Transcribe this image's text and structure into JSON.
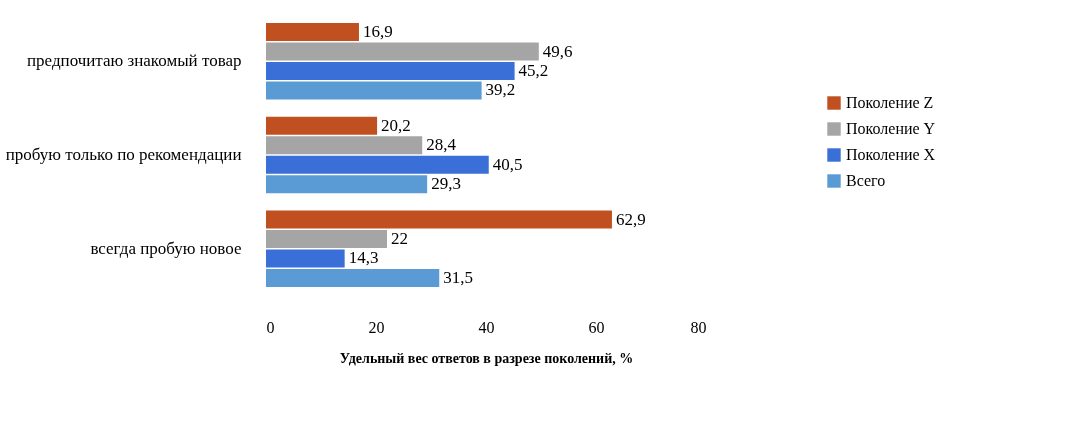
{
  "chart_data": {
    "type": "bar",
    "orientation": "horizontal",
    "xlabel": "Удельный вес ответов в разрезе поколений,  %",
    "categories": [
      "предпочитаю знакомый товар",
      "пробую только по рекомендации",
      "всегда пробую новое"
    ],
    "series": [
      {
        "name": "Поколение  Z",
        "color": "#c0501f",
        "values": [
          16.9,
          20.2,
          62.9
        ],
        "value_labels": [
          "16,9",
          "20,2",
          "62,9"
        ]
      },
      {
        "name": "Поколение  Y",
        "color": "#a5a5a5",
        "values": [
          49.6,
          28.4,
          22
        ],
        "value_labels": [
          "49,6",
          "28,4",
          "22"
        ]
      },
      {
        "name": "Поколение  X",
        "color": "#3a6fd8",
        "values": [
          45.2,
          40.5,
          14.3
        ],
        "value_labels": [
          "45,2",
          "40,5",
          "14,3"
        ]
      },
      {
        "name": "Всего",
        "color": "#5b9bd5",
        "values": [
          39.2,
          29.3,
          31.5
        ],
        "value_labels": [
          "39,2",
          "29,3",
          "31,5"
        ]
      }
    ],
    "xlim": [
      0,
      80
    ],
    "xticks": [
      0,
      20,
      40,
      60,
      80
    ],
    "grid": false,
    "legend": "right"
  }
}
